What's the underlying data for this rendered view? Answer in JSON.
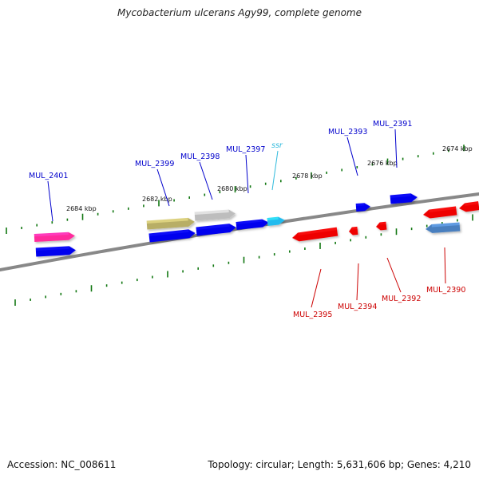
{
  "title": "Mycobacterium ulcerans Agy99, complete genome",
  "footer": {
    "accession": "Accession: NC_008611",
    "stats": "Topology: circular; Length: 5,631,606 bp; Genes: 4,210"
  },
  "colors": {
    "forward_label": "#0000cc",
    "reverse_label": "#cc0000",
    "rna_label": "#33bbdd",
    "tick": "#117711",
    "backbone": "#888888"
  },
  "scale": {
    "unit": "kbp",
    "labels": [
      "2684 kbp",
      "2682 kbp",
      "2680 kbp",
      "2678 kbp",
      "2676 kbp",
      "2674 kbp"
    ]
  },
  "features": [
    {
      "name": "MUL_2401",
      "strand": "forward",
      "color": "#ff2a9c"
    },
    {
      "name": "",
      "strand": "forward",
      "color": "#0000ee"
    },
    {
      "name": "MUL_2399",
      "strand": "forward",
      "color": "#0000ee"
    },
    {
      "name": "",
      "strand": "forward",
      "color": "#b8ae66"
    },
    {
      "name": "MUL_2398",
      "strand": "forward",
      "color": "#0000ee"
    },
    {
      "name": "",
      "strand": "forward",
      "color": "#bdbdbd"
    },
    {
      "name": "MUL_2397",
      "strand": "forward",
      "color": "#0000ee"
    },
    {
      "name": "ssr",
      "strand": "forward",
      "color": "#22bbee"
    },
    {
      "name": "MUL_2395",
      "strand": "reverse",
      "color": "#ee0000"
    },
    {
      "name": "MUL_2394",
      "strand": "reverse",
      "color": "#ee0000"
    },
    {
      "name": "MUL_2393",
      "strand": "forward",
      "color": "#0000ee"
    },
    {
      "name": "MUL_2392",
      "strand": "reverse",
      "color": "#ee0000"
    },
    {
      "name": "MUL_2391",
      "strand": "forward",
      "color": "#0000ee"
    },
    {
      "name": "",
      "strand": "reverse",
      "color": "#ee0000"
    },
    {
      "name": "",
      "strand": "reverse",
      "color": "#ee0000"
    },
    {
      "name": "MUL_2390",
      "strand": "reverse",
      "color": "#4a7fbf"
    }
  ]
}
